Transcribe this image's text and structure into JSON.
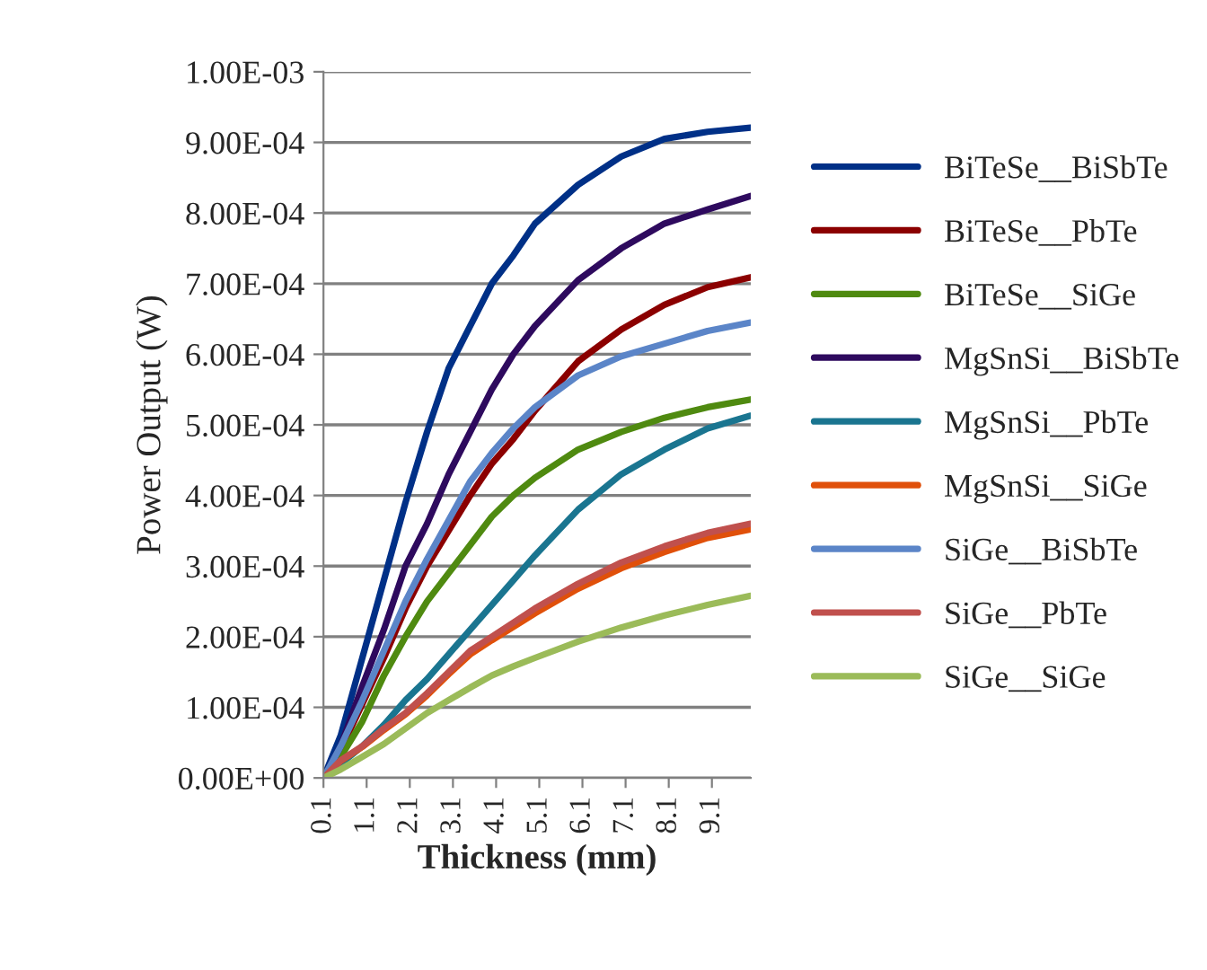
{
  "chart_data": {
    "type": "line",
    "xlabel": "Thickness (mm)",
    "ylabel": "Power Output (W)",
    "x": [
      0.1,
      0.5,
      1,
      1.5,
      2,
      2.5,
      3,
      3.5,
      4,
      4.5,
      5,
      6,
      7,
      8,
      9,
      10
    ],
    "xlim": [
      0.1,
      10
    ],
    "xticks": [
      0.1,
      1.1,
      2.1,
      3.1,
      4.1,
      5.1,
      6.1,
      7.1,
      8.1,
      9.1
    ],
    "ylim": [
      0,
      0.001
    ],
    "yticks": [
      {
        "value": 0,
        "label": "0.00E+00"
      },
      {
        "value": 0.0001,
        "label": "1.00E-04"
      },
      {
        "value": 0.0002,
        "label": "2.00E-04"
      },
      {
        "value": 0.0003,
        "label": "3.00E-04"
      },
      {
        "value": 0.0004,
        "label": "4.00E-04"
      },
      {
        "value": 0.0005,
        "label": "5.00E-04"
      },
      {
        "value": 0.0006,
        "label": "6.00E-04"
      },
      {
        "value": 0.0007,
        "label": "7.00E-04"
      },
      {
        "value": 0.0008,
        "label": "8.00E-04"
      },
      {
        "value": 0.0009,
        "label": "9.00E-04"
      },
      {
        "value": 0.001,
        "label": "1.00E-03"
      }
    ],
    "grid": "y",
    "legend": "right",
    "line_style": "solid",
    "marker": "none",
    "series": [
      {
        "name": "BiTeSe__BiSbTe",
        "color": "#003087",
        "values": [
          0,
          6e-05,
          0.00017,
          0.00028,
          0.00039,
          0.00049,
          0.00058,
          0.00064,
          0.0007,
          0.00074,
          0.000785,
          0.00084,
          0.00088,
          0.000905,
          0.000915,
          0.000921
        ]
      },
      {
        "name": "BiTeSe__PbTe",
        "color": "#8b0000",
        "values": [
          0,
          4e-05,
          0.000105,
          0.00017,
          0.00024,
          0.0003,
          0.00035,
          0.0004,
          0.000445,
          0.00048,
          0.00052,
          0.00059,
          0.000635,
          0.00067,
          0.000695,
          0.000709
        ]
      },
      {
        "name": "BiTeSe__SiGe",
        "color": "#4f8a10",
        "values": [
          0,
          3e-05,
          8e-05,
          0.000145,
          0.0002,
          0.00025,
          0.00029,
          0.00033,
          0.00037,
          0.0004,
          0.000425,
          0.000465,
          0.00049,
          0.00051,
          0.000525,
          0.000536
        ]
      },
      {
        "name": "MgSnSi__BiSbTe",
        "color": "#2e0a5e",
        "values": [
          0,
          4.5e-05,
          0.00013,
          0.00021,
          0.0003,
          0.00036,
          0.00043,
          0.00049,
          0.00055,
          0.0006,
          0.00064,
          0.000705,
          0.00075,
          0.000785,
          0.000805,
          0.000824
        ]
      },
      {
        "name": "MgSnSi__PbTe",
        "color": "#1a7590",
        "values": [
          0,
          2e-05,
          4.5e-05,
          7.5e-05,
          0.00011,
          0.00014,
          0.000175,
          0.00021,
          0.000245,
          0.00028,
          0.000315,
          0.00038,
          0.00043,
          0.000465,
          0.000495,
          0.000513
        ]
      },
      {
        "name": "MgSnSi__SiGe",
        "color": "#e0500a",
        "values": [
          0,
          2.4e-05,
          4.4e-05,
          6.8e-05,
          9e-05,
          0.000117,
          0.000147,
          0.000175,
          0.000195,
          0.000214,
          0.000233,
          0.000268,
          0.000297,
          0.00032,
          0.00034,
          0.000352
        ]
      },
      {
        "name": "SiGe__BiSbTe",
        "color": "#5b85c8",
        "values": [
          0,
          4.5e-05,
          0.00011,
          0.00018,
          0.00025,
          0.00031,
          0.000365,
          0.00042,
          0.00046,
          0.000495,
          0.000525,
          0.00057,
          0.000597,
          0.000615,
          0.000633,
          0.000645
        ]
      },
      {
        "name": "SiGe__PbTe",
        "color": "#c0504d",
        "values": [
          0,
          2.5e-05,
          4.5e-05,
          7e-05,
          9.2e-05,
          0.00012,
          0.00015,
          0.00018,
          0.0002,
          0.00022,
          0.00024,
          0.000275,
          0.000305,
          0.000328,
          0.000347,
          0.00036
        ]
      },
      {
        "name": "SiGe__SiGe",
        "color": "#9bbb59",
        "values": [
          0,
          1.2e-05,
          3e-05,
          4.8e-05,
          7e-05,
          9.2e-05,
          0.00011,
          0.000128,
          0.000145,
          0.000158,
          0.00017,
          0.000193,
          0.000213,
          0.00023,
          0.000245,
          0.000258
        ]
      }
    ]
  }
}
